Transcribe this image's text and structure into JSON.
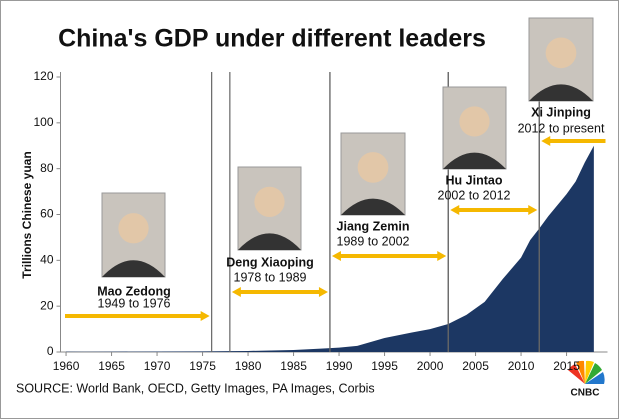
{
  "chart_data": {
    "type": "area",
    "title": "China's GDP under different leaders",
    "ylabel": "Trillions Chinese yuan",
    "source": "SOURCE: World Bank, OECD, Getty Images, PA Images, Corbis",
    "logo": "CNBC",
    "x": [
      1960,
      1962,
      1965,
      1970,
      1975,
      1978,
      1980,
      1985,
      1988,
      1990,
      1992,
      1995,
      1998,
      2000,
      2002,
      2004,
      2006,
      2008,
      2010,
      2011,
      2012,
      2013,
      2014,
      2015,
      2016,
      2017,
      2018
    ],
    "series": [
      {
        "name": "GDP",
        "color": "#1c3763",
        "values": [
          0.15,
          0.12,
          0.17,
          0.23,
          0.3,
          0.37,
          0.46,
          0.9,
          1.5,
          1.9,
          2.7,
          6.1,
          8.5,
          10.0,
          12.2,
          16.2,
          21.9,
          31.9,
          41.2,
          48.8,
          53.9,
          59.3,
          64.1,
          68.9,
          74.4,
          82.7,
          90.0
        ]
      }
    ],
    "xlim": [
      1959.5,
      2019.5
    ],
    "xticks": [
      1960,
      1965,
      1970,
      1975,
      1980,
      1985,
      1990,
      1995,
      2000,
      2005,
      2010,
      2015
    ],
    "ylim": [
      0,
      120
    ],
    "yticks": [
      0,
      20,
      40,
      60,
      80,
      100,
      120
    ],
    "arrow_color": "#f5b800",
    "leaders": [
      {
        "name": "Mao Zedong",
        "term": "1949 to 1976",
        "start": null,
        "end": 1976
      },
      {
        "name": "Deng Xiaoping",
        "term": "1978 to 1989",
        "start": 1978,
        "end": 1989
      },
      {
        "name": "Jiang Zemin",
        "term": "1989 to 2002",
        "start": 1989,
        "end": 2002
      },
      {
        "name": "Hu Jintao",
        "term": "2002 to 2012",
        "start": 2002,
        "end": 2012
      },
      {
        "name": "Xi Jinping",
        "term": "2012 to present",
        "start": 2012,
        "end": null
      }
    ]
  }
}
